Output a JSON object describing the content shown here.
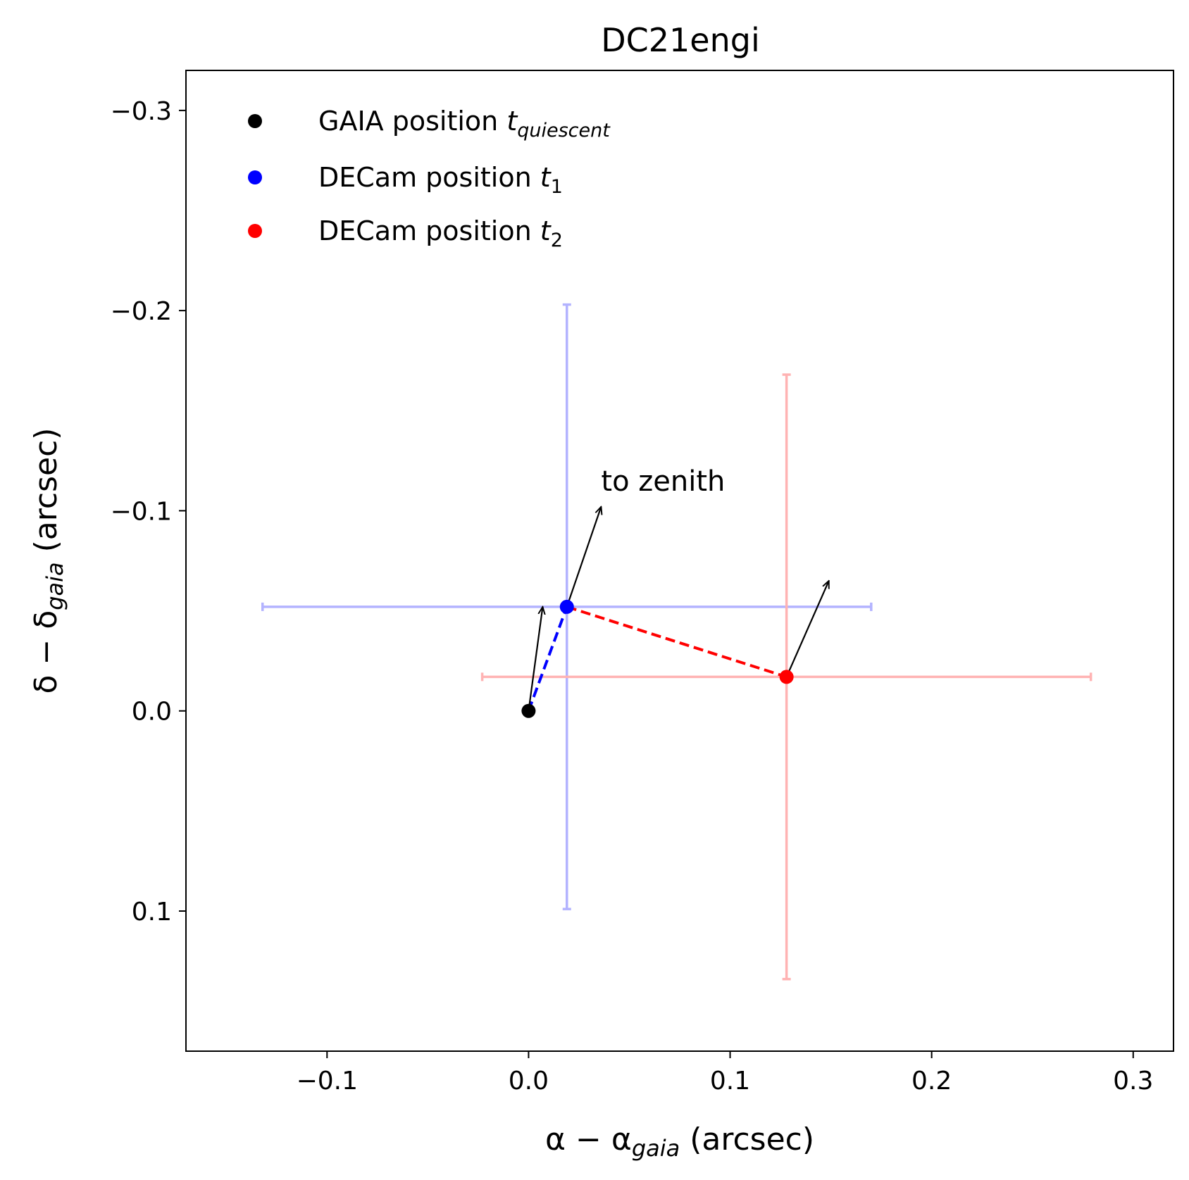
{
  "chart_data": {
    "type": "scatter",
    "title": "DC21engi",
    "xlabel": {
      "base": "α − α",
      "sub": "gaia",
      "suffix": " (arcsec)"
    },
    "ylabel": {
      "base": "δ − δ",
      "sub": "gaia",
      "suffix": " (arcsec)"
    },
    "xlim": [
      -0.17,
      0.32
    ],
    "ylim": [
      0.17,
      -0.32
    ],
    "y_inverted": true,
    "xticks": [
      -0.1,
      0.0,
      0.1,
      0.2,
      0.3
    ],
    "xtick_labels": [
      "−0.1",
      "0.0",
      "0.1",
      "0.2",
      "0.3"
    ],
    "yticks": [
      -0.3,
      -0.2,
      -0.1,
      0.0,
      0.1
    ],
    "ytick_labels": [
      "−0.3",
      "−0.2",
      "−0.1",
      "0.0",
      "0.1"
    ],
    "grid": false,
    "legend_position": "top-left",
    "series": [
      {
        "name": "GAIA position",
        "sub": "quiescent",
        "color": "#000000",
        "x": 0.0,
        "y": 0.0
      },
      {
        "name": "DECam position",
        "sub": "1",
        "color": "#0000ff",
        "x": 0.019,
        "y": -0.052,
        "xerr": 0.151,
        "yerr": 0.151,
        "errcolor": "#b3b3ff"
      },
      {
        "name": "DECam position",
        "sub": "2",
        "color": "#ff0000",
        "x": 0.128,
        "y": -0.017,
        "xerr": 0.151,
        "yerr": 0.151,
        "errcolor": "#ffb3b3"
      }
    ],
    "connectors": [
      {
        "from": [
          0.0,
          0.0
        ],
        "to": [
          0.019,
          -0.052
        ],
        "color": "#0000ff",
        "style": "dashed"
      },
      {
        "from": [
          0.019,
          -0.052
        ],
        "to": [
          0.128,
          -0.017
        ],
        "color": "#ff0000",
        "style": "dashed"
      }
    ],
    "arrows": [
      {
        "from": [
          0.0,
          0.0
        ],
        "to": [
          0.007,
          -0.052
        ],
        "color": "#000000"
      },
      {
        "from": [
          0.019,
          -0.052
        ],
        "to": [
          0.036,
          -0.102
        ],
        "color": "#000000"
      },
      {
        "from": [
          0.128,
          -0.017
        ],
        "to": [
          0.149,
          -0.065
        ],
        "color": "#000000"
      }
    ],
    "annotations": [
      {
        "text": "to zenith",
        "x": 0.036,
        "y": -0.11
      }
    ]
  }
}
